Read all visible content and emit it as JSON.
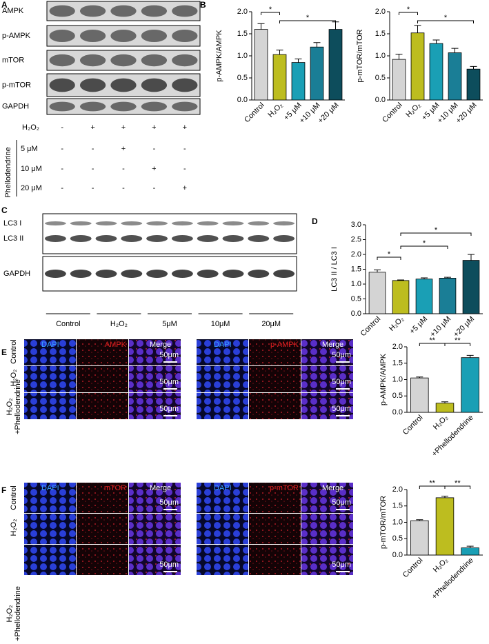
{
  "panel_letters": [
    "A",
    "B",
    "C",
    "D",
    "E",
    "F"
  ],
  "blot_A": {
    "labels": [
      "AMPK",
      "p-AMPK",
      "mTOR",
      "p-mTOR",
      "GAPDH"
    ],
    "treatments": [
      {
        "name": "H₂O₂",
        "marks": [
          "-",
          "+",
          "+",
          "+",
          "+"
        ]
      },
      {
        "name": "5 μM",
        "marks": [
          "-",
          "-",
          "+",
          "-",
          "-"
        ]
      },
      {
        "name": "10 μM",
        "marks": [
          "-",
          "-",
          "-",
          "+",
          "-"
        ]
      },
      {
        "name": "20 μM",
        "marks": [
          "-",
          "-",
          "-",
          "-",
          "+"
        ]
      }
    ],
    "group": "Phellodendrine"
  },
  "blot_C": {
    "labels": [
      "LC3 I",
      "LC3 II",
      "GAPDH"
    ],
    "groups": [
      "Control",
      "H₂O₂",
      "5μM",
      "10μM",
      "20μM"
    ]
  },
  "images": [
    {
      "left": [
        "DAPI",
        "AMPK",
        "Merge"
      ],
      "right": [
        "DAPI",
        "p-AMPK",
        "Merge"
      ],
      "rows": [
        [
          "Control"
        ],
        [
          "H₂O₂"
        ],
        [
          "H₂O₂",
          "+Phellodendrine"
        ]
      ],
      "scale": "50μm"
    },
    {
      "left": [
        "DAPI",
        "mTOR",
        "Merge"
      ],
      "right": [
        "DAPI",
        "p-mTOR",
        "Merge"
      ],
      "rows": [
        [
          "Control"
        ],
        [
          "H₂O₂"
        ],
        [
          "H₂O₂",
          "+Phellodendrine"
        ]
      ],
      "scale": "50μm"
    }
  ],
  "chart_data": [
    {
      "type": "bar",
      "ylabel": "p-AMPK/AMPK",
      "categories": [
        "Control",
        "H₂O₂",
        "+5 μM",
        "+10 μM",
        "+20 μM"
      ],
      "values": [
        1.6,
        1.03,
        0.85,
        1.2,
        1.6
      ],
      "errors": [
        0.13,
        0.1,
        0.08,
        0.1,
        0.17
      ],
      "colors": [
        "#d4d4d4",
        "#bdbd1f",
        "#1a9fb5",
        "#1a7e96",
        "#0d4d5c"
      ],
      "ylim": [
        0,
        2
      ],
      "yticks": [
        {
          "value": 0,
          "label": "0.0"
        },
        0.5,
        {
          "value": 1,
          "label": "1.0"
        },
        1.5,
        {
          "value": 2,
          "label": "2.0"
        }
      ],
      "annotations": [
        "*",
        "*"
      ]
    },
    {
      "type": "bar",
      "ylabel": "p-mTOR/mTOR",
      "categories": [
        "Control",
        "H₂O₂",
        "+5 μM",
        "+10 μM",
        "+20 μM"
      ],
      "values": [
        0.92,
        1.52,
        1.28,
        1.07,
        0.7
      ],
      "errors": [
        0.12,
        0.17,
        0.08,
        0.1,
        0.06
      ],
      "colors": [
        "#d4d4d4",
        "#bdbd1f",
        "#1a9fb5",
        "#1a7e96",
        "#0d4d5c"
      ],
      "ylim": [
        0,
        2
      ],
      "yticks": [
        {
          "value": 0,
          "label": "0.0"
        },
        0.5,
        {
          "value": 1,
          "label": "1.0"
        },
        1.5,
        {
          "value": 2,
          "label": "2.0"
        }
      ],
      "annotations": [
        "*",
        "*"
      ]
    },
    {
      "type": "bar",
      "ylabel": "LC3 II / LC3 I",
      "categories": [
        "Control",
        "H₂O₂",
        "+5 μM",
        "+10 μM",
        "+20 μM"
      ],
      "values": [
        1.4,
        1.12,
        1.17,
        1.2,
        1.8
      ],
      "errors": [
        0.08,
        0.02,
        0.04,
        0.03,
        0.2
      ],
      "colors": [
        "#d4d4d4",
        "#bdbd1f",
        "#1a9fb5",
        "#1a7e96",
        "#0d4d5c"
      ],
      "ylim": [
        0,
        3
      ],
      "yticks": [
        {
          "value": 0,
          "label": "0.0"
        },
        0.5,
        {
          "value": 1,
          "label": "1.0"
        },
        1.5,
        {
          "value": 2,
          "label": "2.0"
        },
        2.5,
        {
          "value": 3,
          "label": "3.0"
        }
      ],
      "annotations": [
        "*",
        "*",
        "*"
      ]
    },
    {
      "type": "bar",
      "ylabel": "p-AMPK/AMPK",
      "categories": [
        "Control",
        "H₂O₂",
        "+Phellodendrine"
      ],
      "values": [
        1.05,
        0.28,
        1.67
      ],
      "errors": [
        0.03,
        0.04,
        0.07
      ],
      "colors": [
        "#d4d4d4",
        "#bdbd1f",
        "#1a9fb5"
      ],
      "ylim": [
        0,
        2
      ],
      "yticks": [
        {
          "value": 0,
          "label": "0.0"
        },
        0.5,
        {
          "value": 1,
          "label": "1.0"
        },
        1.5,
        {
          "value": 2,
          "label": "2.0"
        }
      ],
      "annotations": [
        "**",
        "**"
      ]
    },
    {
      "type": "bar",
      "ylabel": "p-mTOR/mTOR",
      "categories": [
        "Control",
        "H₂O₂",
        "+Phellodendrine"
      ],
      "values": [
        1.05,
        1.75,
        0.22
      ],
      "errors": [
        0.03,
        0.05,
        0.05
      ],
      "colors": [
        "#d4d4d4",
        "#bdbd1f",
        "#1a9fb5"
      ],
      "ylim": [
        0,
        2
      ],
      "yticks": [
        {
          "value": 0,
          "label": "0.0"
        },
        0.5,
        {
          "value": 1,
          "label": "1.0"
        },
        1.5,
        {
          "value": 2,
          "label": "2.0"
        }
      ],
      "annotations": [
        "**",
        "**"
      ]
    }
  ]
}
